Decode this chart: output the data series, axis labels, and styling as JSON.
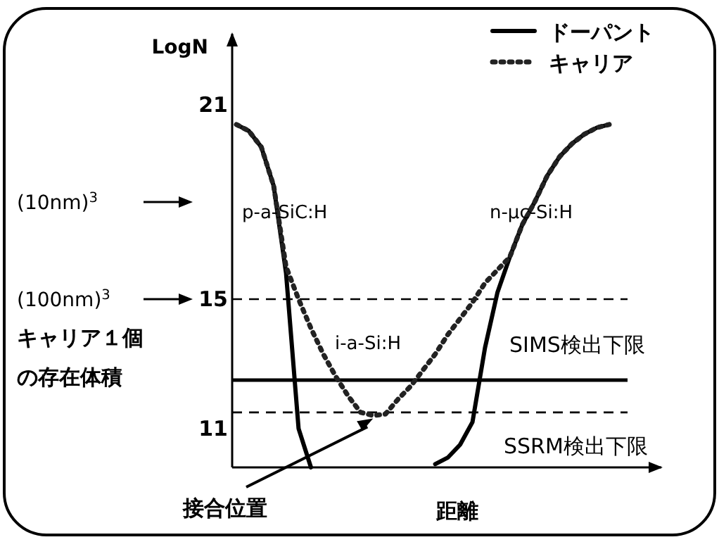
{
  "chart_data": {
    "type": "line",
    "ylabel": "LogN",
    "xlabel": "距離",
    "categories": [
      null,
      null,
      null,
      null,
      null,
      null,
      null,
      null,
      null,
      null,
      null,
      null,
      null,
      null,
      null,
      null,
      null,
      null,
      null,
      null,
      null,
      null,
      null,
      null,
      null,
      null,
      null,
      null,
      null,
      null,
      null
    ],
    "ylim": [
      9.8,
      23.2
    ],
    "yticks": [
      11,
      15,
      21
    ],
    "tick_labels": "y",
    "legend": "top right",
    "series": [
      {
        "name": "ドーパント",
        "color": "#000000",
        "line_style": "solid",
        "values": [
          20.4,
          20.2,
          19.7,
          18.5,
          15.8,
          11.0,
          9.8,
          null,
          null,
          null,
          null,
          null,
          null,
          null,
          null,
          null,
          9.9,
          10.1,
          10.5,
          11.2,
          13.5,
          15.2,
          16.3,
          17.3,
          18.0,
          18.8,
          19.4,
          19.8,
          20.1,
          20.3,
          20.4
        ]
      },
      {
        "name": "キャリア",
        "color": "#222222",
        "line_style": "dotted",
        "values": [
          20.4,
          20.2,
          19.7,
          18.5,
          16.0,
          15.0,
          14.1,
          13.3,
          12.6,
          12.0,
          11.5,
          11.4,
          11.45,
          11.9,
          12.3,
          12.8,
          13.3,
          13.9,
          14.4,
          14.9,
          15.5,
          15.9,
          16.3,
          17.3,
          18.0,
          18.8,
          19.4,
          19.8,
          20.1,
          20.3,
          20.4
        ]
      }
    ],
    "ref_lines": [
      {
        "axis": "y",
        "value": 15,
        "label": "SIMS検出下限",
        "color": "#000000",
        "line_style": "dashed"
      },
      {
        "axis": "y",
        "value": 11.5,
        "label": "SSRM検出下限",
        "color": "#000000",
        "line_style": "dashed"
      },
      {
        "axis": "y",
        "value": 12.5,
        "color": "#000000",
        "line_style": "solid"
      }
    ],
    "annotations": [
      "(10nm)$^{3}$",
      "(100nm)$^{3}$",
      "キャリア１個の存在体積",
      "p-a-SiC:H",
      "n-μc-Si:H",
      "i-a-Si:H",
      "接合位置"
    ]
  }
}
